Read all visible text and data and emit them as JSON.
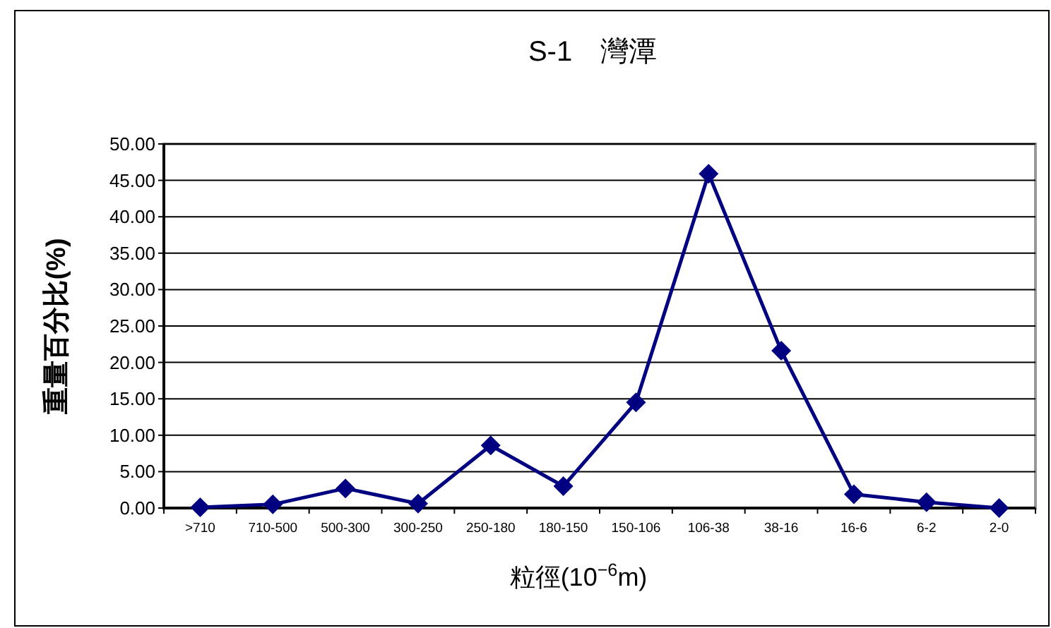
{
  "chart_data": {
    "type": "line",
    "title": "S-1　灣潭",
    "xlabel": "粒徑(10$^{−6}$m)",
    "ylabel": "重量百分比(%)",
    "categories": [
      ">710",
      "710-500",
      "500-300",
      "300-250",
      "250-180",
      "180-150",
      "150-106",
      "106-38",
      "38-16",
      "16-6",
      "6-2",
      "2-0"
    ],
    "series": [
      {
        "color": "#000080",
        "values": [
          0.1,
          0.5,
          2.7,
          0.6,
          8.6,
          3.0,
          14.5,
          45.9,
          21.6,
          1.9,
          0.8,
          0.0
        ]
      }
    ],
    "ylim": [
      0,
      50
    ],
    "yticks": [
      {
        "value": 0,
        "label": "0.00"
      },
      {
        "value": 5,
        "label": "5.00"
      },
      {
        "value": 10,
        "label": "10.00"
      },
      {
        "value": 15,
        "label": "15.00"
      },
      {
        "value": 20,
        "label": "20.00"
      },
      {
        "value": 25,
        "label": "25.00"
      },
      {
        "value": 30,
        "label": "30.00"
      },
      {
        "value": 35,
        "label": "35.00"
      },
      {
        "value": 40,
        "label": "40.00"
      },
      {
        "value": 45,
        "label": "45.00"
      },
      {
        "value": 50,
        "label": "50.00"
      }
    ],
    "grid": "y",
    "marker": "diamond",
    "line_style": "solid"
  }
}
